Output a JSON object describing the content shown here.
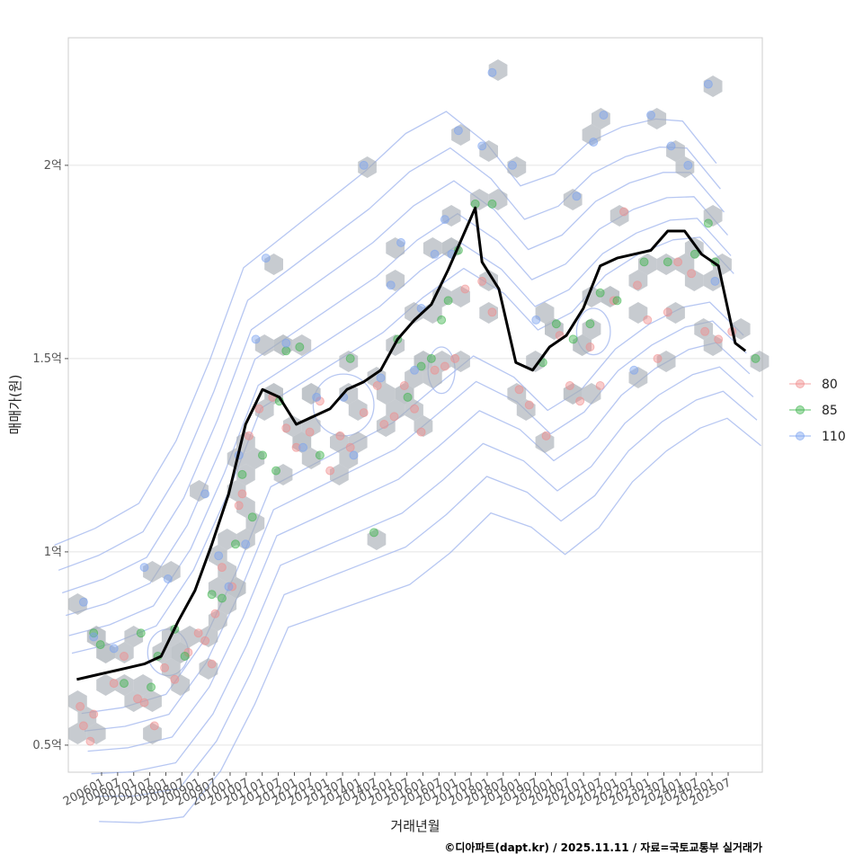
{
  "chart_data": {
    "type": "scatter",
    "title": "",
    "xlabel": "거래년월",
    "ylabel": "매매가(원)",
    "caption": "©디아파트(dapt.kr) / 2025.11.11 / 자료=국토교통부 실거래가",
    "x_tick_labels": [
      "200601",
      "200607",
      "200701",
      "200707",
      "200801",
      "200807",
      "200901",
      "200907",
      "201001",
      "201007",
      "201101",
      "201107",
      "201201",
      "201207",
      "201301",
      "201307",
      "201401",
      "201407",
      "201501",
      "201507",
      "201601",
      "201607",
      "201701",
      "201707",
      "201801",
      "201807",
      "201901",
      "201907",
      "202001",
      "202007",
      "202101",
      "202107",
      "202201",
      "202207",
      "202301",
      "202307",
      "202401",
      "202407",
      "202501",
      "202507"
    ],
    "y_ticks": [
      {
        "value": 0.5,
        "label": "0.5억"
      },
      {
        "value": 1.0,
        "label": "1억"
      },
      {
        "value": 1.5,
        "label": "1.5억"
      },
      {
        "value": 2.0,
        "label": "2억"
      }
    ],
    "xlim": [
      2005.75,
      2026.3
    ],
    "ylim": [
      0.43,
      2.33
    ],
    "legend": {
      "position": "right",
      "entries": [
        {
          "label": "80",
          "color": "#f08c8c"
        },
        {
          "label": "85",
          "color": "#3cb44b"
        },
        {
          "label": "110",
          "color": "#7aa2f0"
        }
      ]
    },
    "colors": {
      "hex": "#a6adb4",
      "trend": "#000000",
      "contour": "#9fb4ee",
      "grid": "#e4e4e4"
    },
    "trend_line": {
      "name": "moving average",
      "x": [
        2006.0,
        2006.5,
        2007.0,
        2007.5,
        2008.0,
        2008.5,
        2009.0,
        2009.5,
        2010.0,
        2010.5,
        2011.0,
        2011.5,
        2012.0,
        2012.5,
        2013.0,
        2013.5,
        2014.0,
        2014.5,
        2015.0,
        2015.5,
        2016.0,
        2016.5,
        2017.0,
        2017.5,
        2017.8,
        2018.0,
        2018.5,
        2019.0,
        2019.5,
        2020.0,
        2020.5,
        2021.0,
        2021.5,
        2022.0,
        2022.5,
        2023.0,
        2023.5,
        2024.0,
        2024.5,
        2025.0,
        2025.5,
        2025.8
      ],
      "y": [
        0.67,
        0.68,
        0.69,
        0.7,
        0.71,
        0.73,
        0.82,
        0.9,
        1.02,
        1.15,
        1.33,
        1.42,
        1.4,
        1.33,
        1.35,
        1.37,
        1.42,
        1.44,
        1.47,
        1.55,
        1.6,
        1.64,
        1.73,
        1.83,
        1.89,
        1.75,
        1.68,
        1.49,
        1.47,
        1.53,
        1.56,
        1.63,
        1.74,
        1.76,
        1.77,
        1.78,
        1.83,
        1.83,
        1.77,
        1.74,
        1.54,
        1.52
      ]
    },
    "series": [
      {
        "name": "80",
        "color": "#f08c8c",
        "points": [
          [
            2006.1,
            0.6
          ],
          [
            2006.2,
            0.55
          ],
          [
            2006.4,
            0.51
          ],
          [
            2006.5,
            0.58
          ],
          [
            2007.1,
            0.66
          ],
          [
            2007.4,
            0.73
          ],
          [
            2007.8,
            0.62
          ],
          [
            2008.0,
            0.61
          ],
          [
            2008.3,
            0.55
          ],
          [
            2008.6,
            0.7
          ],
          [
            2008.9,
            0.67
          ],
          [
            2009.3,
            0.74
          ],
          [
            2009.6,
            0.79
          ],
          [
            2009.8,
            0.77
          ],
          [
            2010.0,
            0.71
          ],
          [
            2010.1,
            0.84
          ],
          [
            2010.3,
            0.96
          ],
          [
            2010.6,
            0.91
          ],
          [
            2010.8,
            1.12
          ],
          [
            2010.9,
            1.15
          ],
          [
            2011.1,
            1.3
          ],
          [
            2011.4,
            1.37
          ],
          [
            2011.8,
            1.4
          ],
          [
            2012.2,
            1.32
          ],
          [
            2012.5,
            1.27
          ],
          [
            2012.9,
            1.31
          ],
          [
            2013.2,
            1.39
          ],
          [
            2013.5,
            1.21
          ],
          [
            2013.8,
            1.3
          ],
          [
            2014.1,
            1.27
          ],
          [
            2014.5,
            1.36
          ],
          [
            2014.9,
            1.43
          ],
          [
            2015.1,
            1.33
          ],
          [
            2015.4,
            1.35
          ],
          [
            2015.7,
            1.43
          ],
          [
            2016.0,
            1.37
          ],
          [
            2016.2,
            1.31
          ],
          [
            2016.6,
            1.47
          ],
          [
            2016.9,
            1.48
          ],
          [
            2017.2,
            1.5
          ],
          [
            2017.5,
            1.68
          ],
          [
            2018.0,
            1.7
          ],
          [
            2018.3,
            1.62
          ],
          [
            2019.1,
            1.42
          ],
          [
            2019.4,
            1.38
          ],
          [
            2019.9,
            1.3
          ],
          [
            2020.3,
            1.56
          ],
          [
            2020.6,
            1.43
          ],
          [
            2020.9,
            1.39
          ],
          [
            2021.2,
            1.53
          ],
          [
            2021.5,
            1.43
          ],
          [
            2021.9,
            1.65
          ],
          [
            2022.2,
            1.88
          ],
          [
            2022.6,
            1.69
          ],
          [
            2022.9,
            1.6
          ],
          [
            2023.2,
            1.5
          ],
          [
            2023.5,
            1.62
          ],
          [
            2023.8,
            1.75
          ],
          [
            2024.2,
            1.72
          ],
          [
            2024.6,
            1.57
          ],
          [
            2025.0,
            1.55
          ],
          [
            2025.4,
            1.57
          ]
        ]
      },
      {
        "name": "85",
        "color": "#3cb44b",
        "points": [
          [
            2006.5,
            0.79
          ],
          [
            2006.7,
            0.76
          ],
          [
            2007.4,
            0.66
          ],
          [
            2007.9,
            0.79
          ],
          [
            2008.2,
            0.65
          ],
          [
            2008.4,
            0.73
          ],
          [
            2008.9,
            0.8
          ],
          [
            2009.2,
            0.73
          ],
          [
            2010.0,
            0.89
          ],
          [
            2010.3,
            0.88
          ],
          [
            2010.7,
            1.02
          ],
          [
            2010.9,
            1.2
          ],
          [
            2011.2,
            1.09
          ],
          [
            2011.5,
            1.25
          ],
          [
            2011.9,
            1.21
          ],
          [
            2012.0,
            1.39
          ],
          [
            2012.2,
            1.52
          ],
          [
            2012.6,
            1.53
          ],
          [
            2013.2,
            1.25
          ],
          [
            2014.1,
            1.5
          ],
          [
            2014.8,
            1.05
          ],
          [
            2015.5,
            1.55
          ],
          [
            2015.8,
            1.4
          ],
          [
            2016.2,
            1.48
          ],
          [
            2016.5,
            1.5
          ],
          [
            2016.8,
            1.6
          ],
          [
            2017.0,
            1.65
          ],
          [
            2017.3,
            1.78
          ],
          [
            2017.8,
            1.9
          ],
          [
            2018.3,
            1.9
          ],
          [
            2019.8,
            1.49
          ],
          [
            2020.2,
            1.59
          ],
          [
            2020.7,
            1.55
          ],
          [
            2021.2,
            1.59
          ],
          [
            2021.5,
            1.67
          ],
          [
            2022.0,
            1.65
          ],
          [
            2022.8,
            1.75
          ],
          [
            2023.5,
            1.75
          ],
          [
            2024.3,
            1.77
          ],
          [
            2024.7,
            1.85
          ],
          [
            2024.9,
            1.75
          ],
          [
            2026.1,
            1.5
          ]
        ]
      },
      {
        "name": "110",
        "color": "#7aa2f0",
        "points": [
          [
            2006.2,
            0.87
          ],
          [
            2006.5,
            0.78
          ],
          [
            2007.1,
            0.75
          ],
          [
            2008.0,
            0.96
          ],
          [
            2008.7,
            0.93
          ],
          [
            2009.8,
            1.15
          ],
          [
            2010.2,
            0.99
          ],
          [
            2010.5,
            0.91
          ],
          [
            2010.8,
            1.25
          ],
          [
            2011.0,
            1.02
          ],
          [
            2011.3,
            1.55
          ],
          [
            2011.6,
            1.76
          ],
          [
            2012.2,
            1.54
          ],
          [
            2012.7,
            1.27
          ],
          [
            2013.1,
            1.4
          ],
          [
            2013.9,
            1.4
          ],
          [
            2014.2,
            1.25
          ],
          [
            2014.5,
            2.0
          ],
          [
            2015.0,
            1.45
          ],
          [
            2015.3,
            1.69
          ],
          [
            2015.6,
            1.8
          ],
          [
            2016.0,
            1.47
          ],
          [
            2016.2,
            1.63
          ],
          [
            2016.6,
            1.77
          ],
          [
            2016.9,
            1.86
          ],
          [
            2017.1,
            1.77
          ],
          [
            2017.3,
            2.09
          ],
          [
            2018.0,
            2.05
          ],
          [
            2018.3,
            2.24
          ],
          [
            2018.9,
            2.0
          ],
          [
            2019.6,
            1.6
          ],
          [
            2020.8,
            1.92
          ],
          [
            2021.3,
            2.06
          ],
          [
            2021.6,
            2.13
          ],
          [
            2022.5,
            1.47
          ],
          [
            2023.0,
            2.13
          ],
          [
            2023.6,
            2.05
          ],
          [
            2024.1,
            2.0
          ],
          [
            2024.7,
            2.21
          ],
          [
            2024.9,
            1.7
          ]
        ]
      }
    ]
  }
}
